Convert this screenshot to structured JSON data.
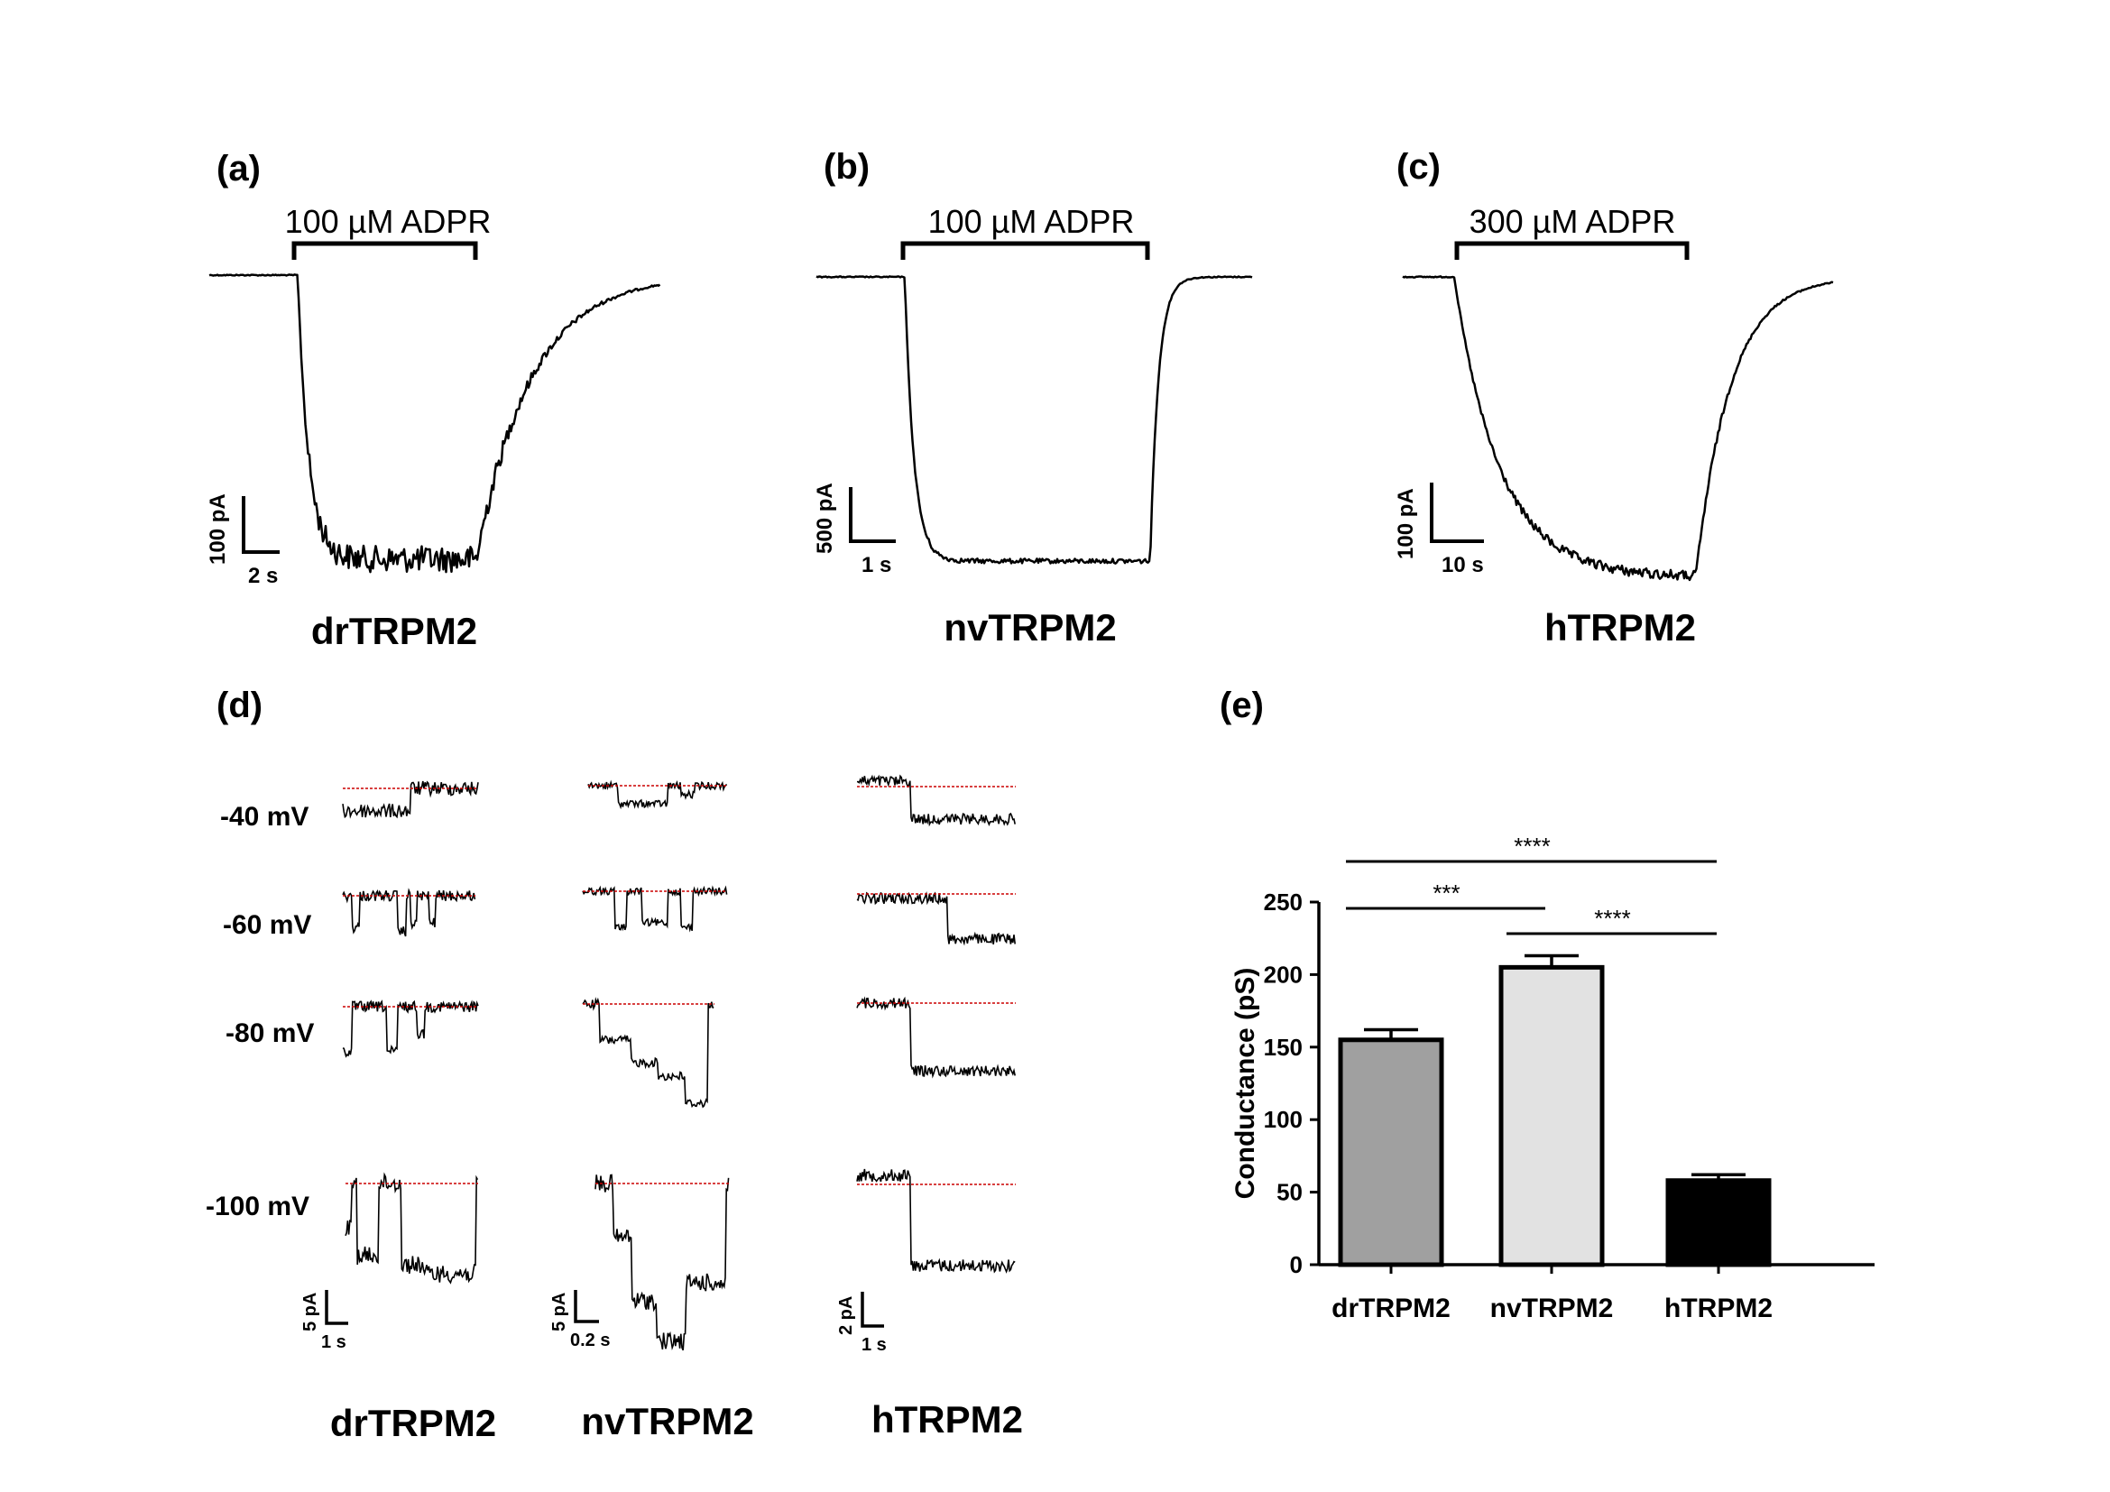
{
  "panels": {
    "a": {
      "label": "(a)",
      "bar_text": "100 µM ADPR",
      "name": "drTRPM2",
      "scale_y": "100 pA",
      "scale_x": "2 s"
    },
    "b": {
      "label": "(b)",
      "bar_text": "100 µM ADPR",
      "name": "nvTRPM2",
      "scale_y": "500 pA",
      "scale_x": "1 s"
    },
    "c": {
      "label": "(c)",
      "bar_text": "300 µM ADPR",
      "name": "hTRPM2",
      "scale_y": "100 pA",
      "scale_x": "10 s"
    },
    "d": {
      "label": "(d)",
      "voltages": [
        "-40 mV",
        "-60 mV",
        "-80 mV",
        "-100 mV"
      ],
      "names": [
        "drTRPM2",
        "nvTRPM2",
        "hTRPM2"
      ],
      "scales": [
        {
          "y": "5 pA",
          "x": "1 s"
        },
        {
          "y": "5 pA",
          "x": "0.2 s"
        },
        {
          "y": "2 pA",
          "x": "1 s"
        }
      ]
    },
    "e": {
      "label": "(e)"
    }
  },
  "colors": {
    "trace": "#000000",
    "baseline": "#cc0000"
  },
  "chart_data": {
    "type": "bar",
    "categories": [
      "drTRPM2",
      "nvTRPM2",
      "hTRPM2"
    ],
    "values": [
      155,
      205,
      58
    ],
    "errors": [
      7,
      8,
      4
    ],
    "bar_colors": [
      "#a0a0a0",
      "#e2e2e2",
      "#000000"
    ],
    "ylabel": "Conductance (pS)",
    "ylim": [
      0,
      250
    ],
    "yticks": [
      "0",
      "50",
      "100",
      "150",
      "200",
      "250"
    ],
    "significance": [
      {
        "pair": [
          "drTRPM2",
          "hTRPM2"
        ],
        "text": "****"
      },
      {
        "pair": [
          "drTRPM2",
          "nvTRPM2"
        ],
        "text": "***"
      },
      {
        "pair": [
          "nvTRPM2",
          "hTRPM2"
        ],
        "text": "****"
      }
    ]
  }
}
